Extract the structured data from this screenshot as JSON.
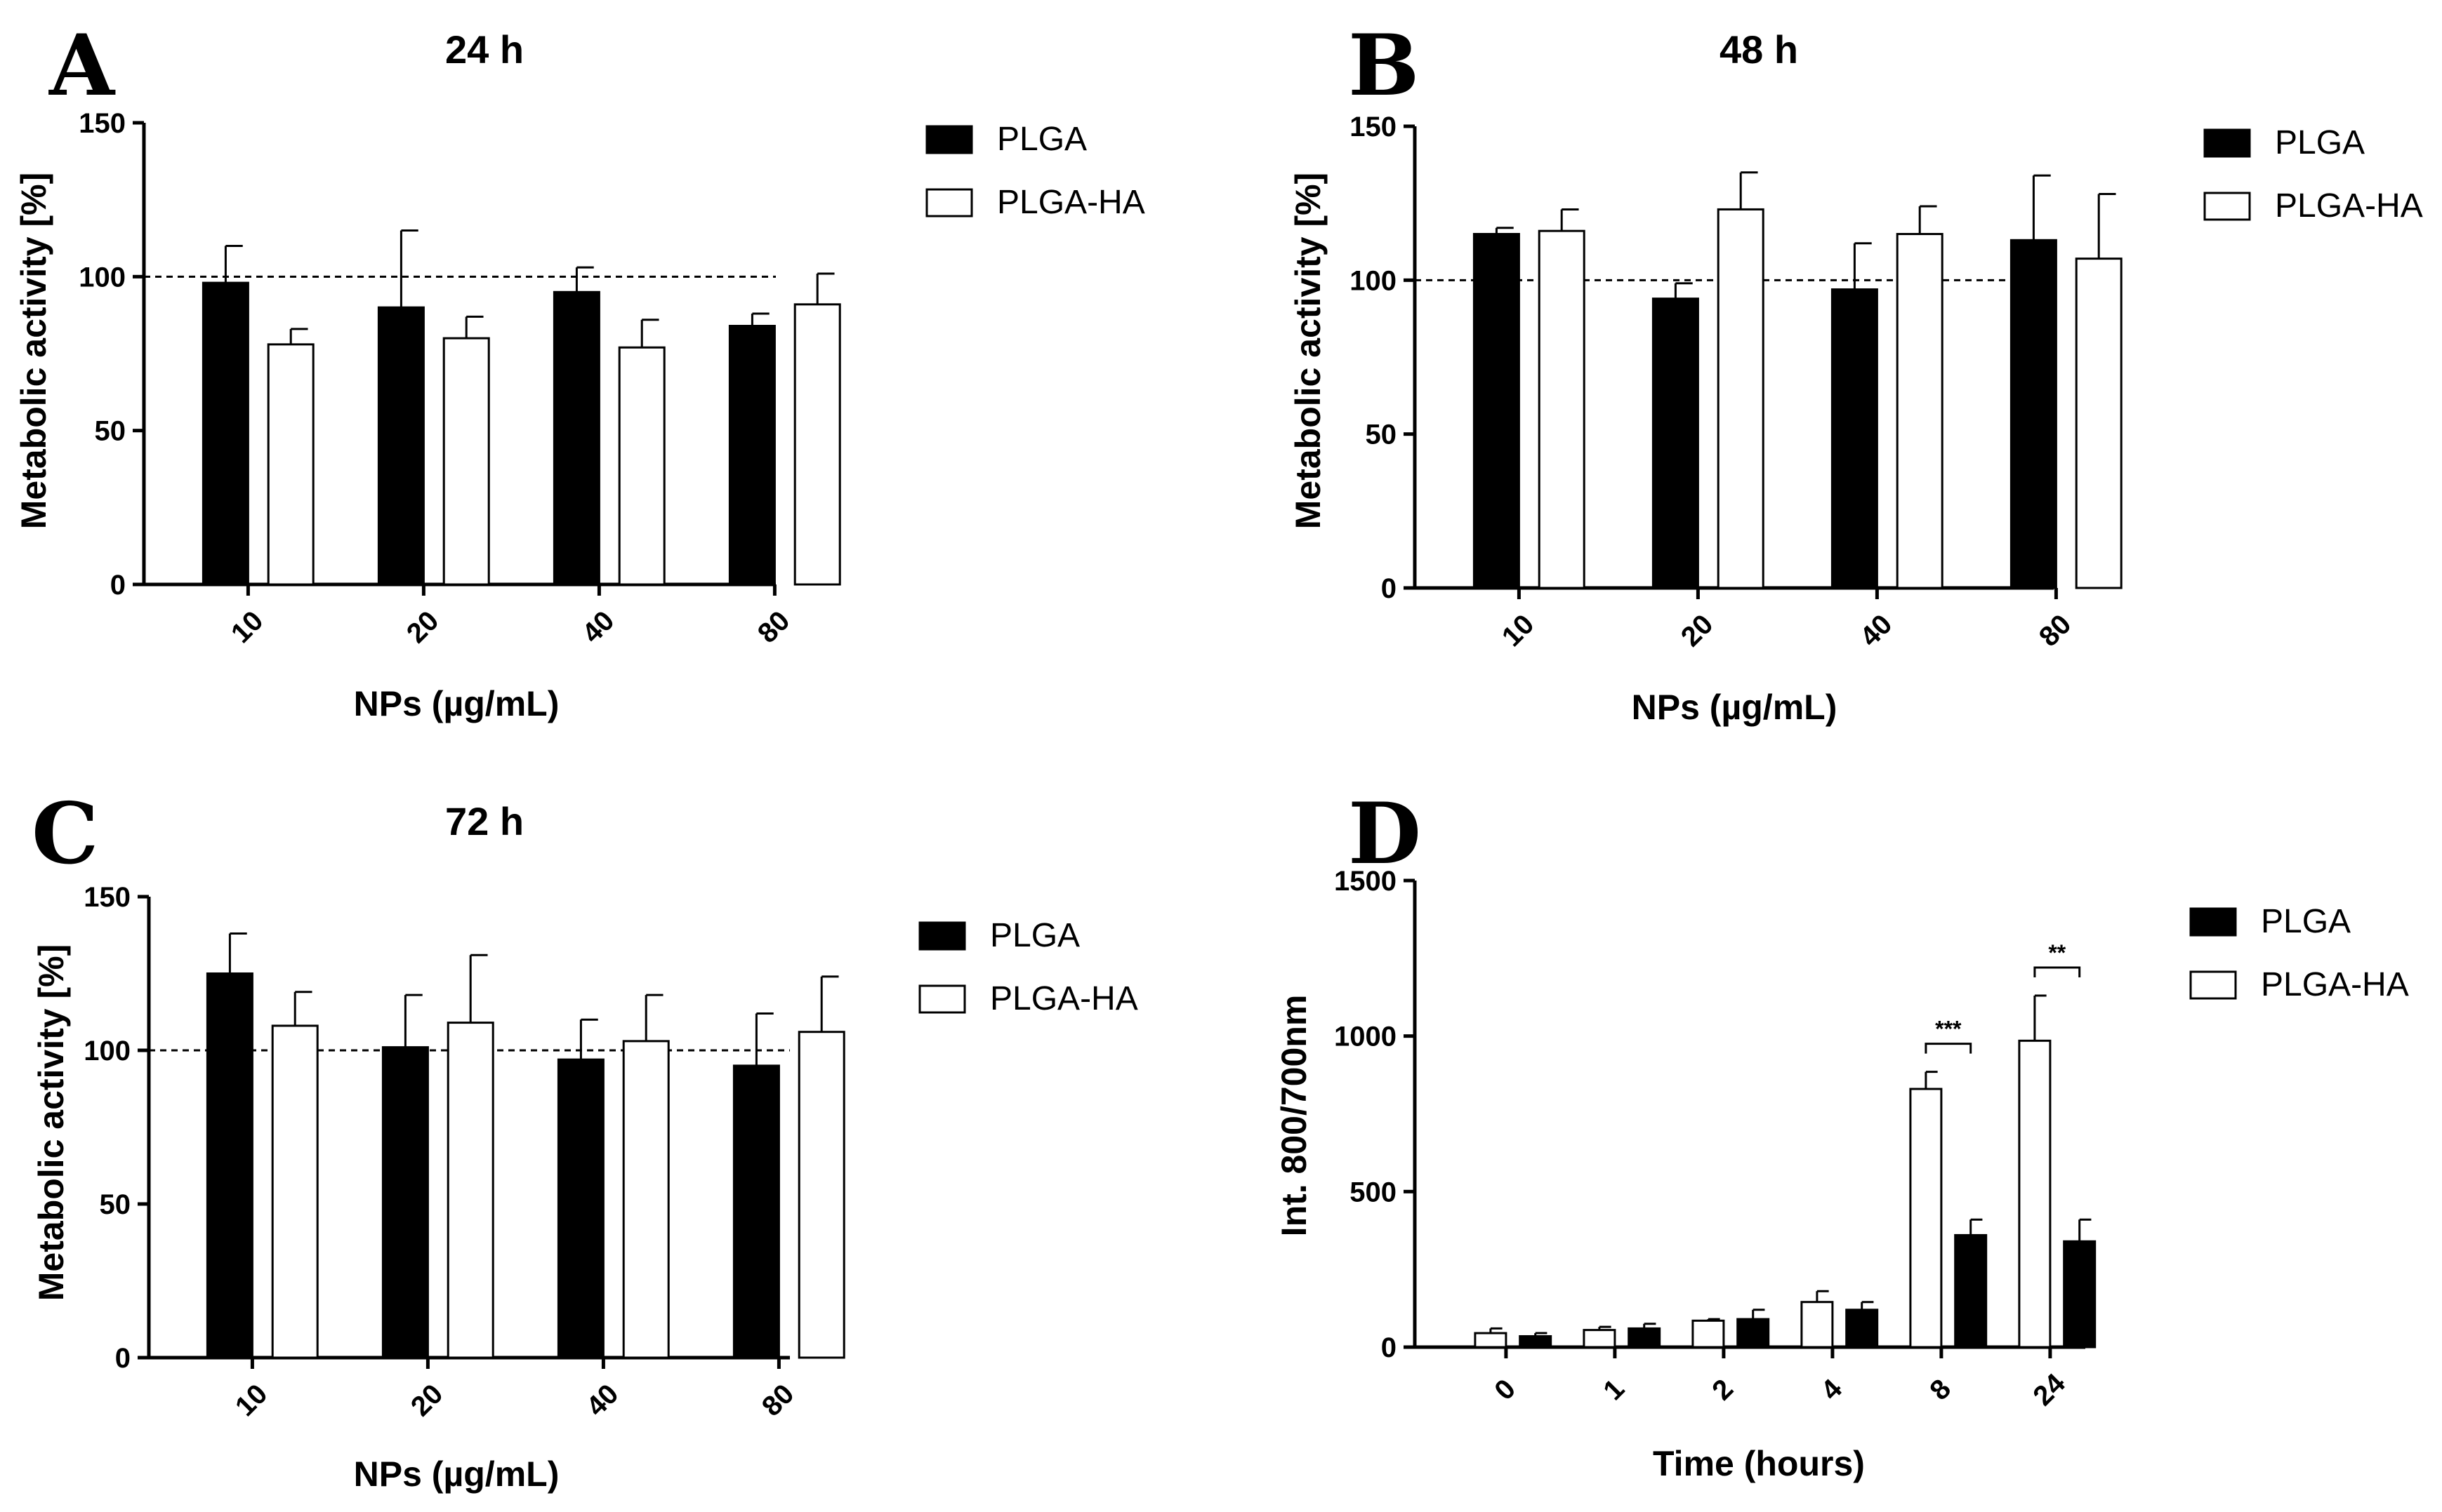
{
  "chart_data": [
    {
      "panel": "A",
      "type": "bar",
      "title": "24 h",
      "xlabel": "NPs (µg/mL)",
      "ylabel": "Metabolic activity [%]",
      "ylim": [
        0,
        150
      ],
      "yticks": [
        "0",
        "50",
        "100",
        "150"
      ],
      "reference_line": 100,
      "legend_position": "right",
      "categories": [
        "10",
        "20",
        "40",
        "80"
      ],
      "series": [
        {
          "name": "PLGA",
          "fill": "#000000",
          "values": [
            98,
            90,
            95,
            84
          ],
          "errors": [
            12,
            25,
            8,
            4
          ]
        },
        {
          "name": "PLGA-HA",
          "fill": "#ffffff",
          "values": [
            78,
            80,
            77,
            91
          ],
          "errors": [
            5,
            7,
            9,
            10
          ]
        }
      ]
    },
    {
      "panel": "B",
      "type": "bar",
      "title": "48 h",
      "xlabel": "NPs (µg/mL)",
      "ylabel": "Metabolic activity [%]",
      "ylim": [
        0,
        150
      ],
      "yticks": [
        "0",
        "50",
        "100",
        "150"
      ],
      "reference_line": 100,
      "legend_position": "right",
      "categories": [
        "10",
        "20",
        "40",
        "80"
      ],
      "series": [
        {
          "name": "PLGA",
          "fill": "#000000",
          "values": [
            115,
            94,
            97,
            113
          ],
          "errors": [
            2,
            5,
            15,
            21
          ]
        },
        {
          "name": "PLGA-HA",
          "fill": "#ffffff",
          "values": [
            116,
            123,
            115,
            107
          ],
          "errors": [
            7,
            12,
            9,
            21
          ]
        }
      ]
    },
    {
      "panel": "C",
      "type": "bar",
      "title": "72 h",
      "xlabel": "NPs (µg/mL)",
      "ylabel": "Metabolic activity [%]",
      "ylim": [
        0,
        150
      ],
      "yticks": [
        "0",
        "50",
        "100",
        "150"
      ],
      "reference_line": 100,
      "legend_position": "right",
      "categories": [
        "10",
        "20",
        "40",
        "80"
      ],
      "series": [
        {
          "name": "PLGA",
          "fill": "#000000",
          "values": [
            125,
            101,
            97,
            95
          ],
          "errors": [
            13,
            17,
            13,
            17
          ]
        },
        {
          "name": "PLGA-HA",
          "fill": "#ffffff",
          "values": [
            108,
            109,
            103,
            106
          ],
          "errors": [
            11,
            22,
            15,
            18
          ]
        }
      ]
    },
    {
      "panel": "D",
      "type": "bar",
      "title": "",
      "xlabel": "Time (hours)",
      "ylabel": "Int. 800/700nm",
      "ylim": [
        0,
        1500
      ],
      "yticks": [
        "0",
        "500",
        "1000",
        "1500"
      ],
      "legend_position": "right",
      "categories": [
        "0",
        "1",
        "2",
        "4",
        "8",
        "24"
      ],
      "series": [
        {
          "name": "PLGA-HA",
          "fill": "#ffffff",
          "values": [
            45,
            55,
            85,
            145,
            830,
            985
          ],
          "errors": [
            15,
            10,
            5,
            35,
            55,
            145
          ]
        },
        {
          "name": "PLGA",
          "fill": "#000000",
          "values": [
            35,
            60,
            90,
            120,
            360,
            340
          ],
          "errors": [
            10,
            15,
            30,
            25,
            50,
            70
          ]
        }
      ],
      "legend_order": [
        "PLGA",
        "PLGA-HA"
      ],
      "annotations": [
        {
          "category": "8",
          "text": "***"
        },
        {
          "category": "24",
          "text": "**"
        }
      ]
    }
  ]
}
